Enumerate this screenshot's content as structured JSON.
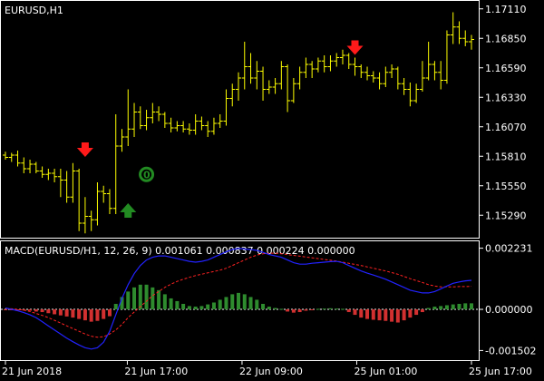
{
  "window": {
    "title": "EURUSD,H1",
    "indicator_title": "MACD(EURUSD/H1, 12, 26, 9) 0.001061 0.000837 0.000224 0.000000"
  },
  "colors": {
    "background": "#000000",
    "frame": "#ffffff",
    "price_bars": "#ffff00",
    "macd_line": "#2222ff",
    "signal_line": "#ff2222",
    "hist_positive": "#2e8b2e",
    "hist_negative": "#d23030",
    "arrow_up": "#228b22",
    "arrow_down": "#ff1a1a",
    "zero_line": "#ffffff"
  },
  "chart_data": [
    {
      "type": "ohlc",
      "title": "EURUSD,H1",
      "y_ticks": [
        "1.17110",
        "1.16850",
        "1.16590",
        "1.16330",
        "1.16070",
        "1.15810",
        "1.15550",
        "1.15290"
      ],
      "ylim": [
        1.1514,
        1.1714
      ],
      "bars": [
        [
          1.1582,
          1.1585,
          1.1578,
          1.158
        ],
        [
          1.158,
          1.1584,
          1.1576,
          1.1582
        ],
        [
          1.1582,
          1.1586,
          1.1572,
          1.1575
        ],
        [
          1.1575,
          1.158,
          1.1566,
          1.157
        ],
        [
          1.157,
          1.1578,
          1.1566,
          1.1574
        ],
        [
          1.1574,
          1.1576,
          1.1566,
          1.1568
        ],
        [
          1.1568,
          1.1572,
          1.1562,
          1.1565
        ],
        [
          1.1565,
          1.157,
          1.156,
          1.1566
        ],
        [
          1.1566,
          1.157,
          1.1558,
          1.1563
        ],
        [
          1.1563,
          1.157,
          1.1545,
          1.156
        ],
        [
          1.156,
          1.1568,
          1.154,
          1.1545
        ],
        [
          1.1545,
          1.1575,
          1.154,
          1.1568
        ],
        [
          1.1568,
          1.157,
          1.1515,
          1.1522
        ],
        [
          1.1522,
          1.1545,
          1.1513,
          1.1528
        ],
        [
          1.1528,
          1.1533,
          1.1515,
          1.1525
        ],
        [
          1.1525,
          1.1558,
          1.152,
          1.155
        ],
        [
          1.155,
          1.1555,
          1.154,
          1.1548
        ],
        [
          1.1548,
          1.1552,
          1.153,
          1.1535
        ],
        [
          1.1535,
          1.1618,
          1.153,
          1.159
        ],
        [
          1.159,
          1.1605,
          1.1585,
          1.1598
        ],
        [
          1.1598,
          1.164,
          1.159,
          1.1605
        ],
        [
          1.1605,
          1.1628,
          1.1598,
          1.162
        ],
        [
          1.162,
          1.1625,
          1.1605,
          1.1608
        ],
        [
          1.1608,
          1.1622,
          1.1604,
          1.1615
        ],
        [
          1.1615,
          1.1628,
          1.161,
          1.162
        ],
        [
          1.162,
          1.1625,
          1.1612,
          1.1618
        ],
        [
          1.1618,
          1.162,
          1.1606,
          1.161
        ],
        [
          1.161,
          1.1615,
          1.1602,
          1.1606
        ],
        [
          1.1606,
          1.1612,
          1.1603,
          1.1608
        ],
        [
          1.1608,
          1.1612,
          1.1602,
          1.1605
        ],
        [
          1.1605,
          1.161,
          1.16,
          1.1604
        ],
        [
          1.1604,
          1.1618,
          1.16,
          1.1612
        ],
        [
          1.1612,
          1.1616,
          1.1604,
          1.1608
        ],
        [
          1.1608,
          1.1612,
          1.1598,
          1.1603
        ],
        [
          1.1603,
          1.1615,
          1.16,
          1.161
        ],
        [
          1.161,
          1.1618,
          1.1606,
          1.1612
        ],
        [
          1.1612,
          1.164,
          1.1608,
          1.1632
        ],
        [
          1.1632,
          1.1645,
          1.1625,
          1.164
        ],
        [
          1.164,
          1.1655,
          1.163,
          1.165
        ],
        [
          1.165,
          1.1682,
          1.164,
          1.166
        ],
        [
          1.166,
          1.1672,
          1.1645,
          1.165
        ],
        [
          1.165,
          1.1665,
          1.164,
          1.1656
        ],
        [
          1.1656,
          1.166,
          1.163,
          1.164
        ],
        [
          1.164,
          1.1648,
          1.1636,
          1.1642
        ],
        [
          1.1642,
          1.165,
          1.1636,
          1.1645
        ],
        [
          1.1645,
          1.1665,
          1.164,
          1.166
        ],
        [
          1.166,
          1.1662,
          1.162,
          1.163
        ],
        [
          1.163,
          1.165,
          1.1628,
          1.1645
        ],
        [
          1.1645,
          1.166,
          1.164,
          1.1655
        ],
        [
          1.1655,
          1.1668,
          1.165,
          1.1662
        ],
        [
          1.1662,
          1.1665,
          1.165,
          1.1658
        ],
        [
          1.1658,
          1.1668,
          1.1655,
          1.1665
        ],
        [
          1.1665,
          1.167,
          1.1655,
          1.166
        ],
        [
          1.166,
          1.167,
          1.1656,
          1.1665
        ],
        [
          1.1665,
          1.1672,
          1.166,
          1.1668
        ],
        [
          1.1668,
          1.1675,
          1.1662,
          1.167
        ],
        [
          1.167,
          1.1672,
          1.1658,
          1.1662
        ],
        [
          1.1662,
          1.1668,
          1.1652,
          1.166
        ],
        [
          1.166,
          1.1662,
          1.165,
          1.1655
        ],
        [
          1.1655,
          1.166,
          1.1648,
          1.1652
        ],
        [
          1.1652,
          1.1656,
          1.1646,
          1.165
        ],
        [
          1.165,
          1.1655,
          1.164,
          1.1645
        ],
        [
          1.1645,
          1.166,
          1.1642,
          1.1655
        ],
        [
          1.1655,
          1.1662,
          1.165,
          1.1658
        ],
        [
          1.1658,
          1.166,
          1.164,
          1.1645
        ],
        [
          1.1645,
          1.165,
          1.1635,
          1.164
        ],
        [
          1.164,
          1.1646,
          1.1625,
          1.163
        ],
        [
          1.163,
          1.1645,
          1.1628,
          1.164
        ],
        [
          1.164,
          1.1665,
          1.1638,
          1.165
        ],
        [
          1.165,
          1.1682,
          1.1648,
          1.1662
        ],
        [
          1.1662,
          1.1665,
          1.1648,
          1.1655
        ],
        [
          1.1655,
          1.1665,
          1.164,
          1.1648
        ],
        [
          1.1648,
          1.1692,
          1.1645,
          1.1688
        ],
        [
          1.1688,
          1.1708,
          1.168,
          1.1695
        ],
        [
          1.1695,
          1.17,
          1.168,
          1.1685
        ],
        [
          1.1685,
          1.1692,
          1.1678,
          1.1682
        ],
        [
          1.1682,
          1.1688,
          1.1675,
          1.1684
        ]
      ],
      "signals": [
        {
          "type": "sell",
          "bar": 13,
          "price": 1.1582
        },
        {
          "type": "buy",
          "bar": 20,
          "price": 1.1538
        },
        {
          "type": "sell",
          "bar": 57,
          "price": 1.1672
        }
      ],
      "marker": {
        "text": "0",
        "bar": 23,
        "price": 1.1565
      }
    },
    {
      "type": "macd",
      "title": "MACD(EURUSD/H1, 12, 26, 9) 0.001061 0.000837 0.000224 0.000000",
      "y_ticks": [
        "0.002231",
        "0.000000",
        "-0.001502"
      ],
      "ylim": [
        -0.00172,
        0.00235
      ],
      "histogram": [
        -2e-05,
        -2e-05,
        -3e-05,
        -4e-05,
        -5e-05,
        -8e-05,
        -0.0001,
        -0.00014,
        -0.00018,
        -0.00022,
        -0.00026,
        -0.0003,
        -0.00035,
        -0.0004,
        -0.00045,
        -0.00042,
        -0.00035,
        -0.00025,
        0.0002,
        0.00045,
        0.00065,
        0.0008,
        0.0009,
        0.0009,
        0.0008,
        0.0007,
        0.00055,
        0.0004,
        0.0003,
        0.0002,
        0.00012,
        0.0001,
        0.00012,
        0.00018,
        0.00025,
        0.00035,
        0.00045,
        0.00055,
        0.0006,
        0.00055,
        0.00045,
        0.00035,
        0.0002,
        0.0001,
        5e-05,
        2e-05,
        -8e-05,
        -0.00012,
        -0.0001,
        -5e-05,
        -2e-05,
        2e-05,
        3e-05,
        4e-05,
        3e-05,
        2e-05,
        -0.0001,
        -0.0002,
        -0.0003,
        -0.00035,
        -0.00038,
        -0.0004,
        -0.00042,
        -0.00045,
        -0.00048,
        -0.0004,
        -0.0003,
        -0.0002,
        -0.0001,
        5e-05,
        0.0001,
        0.00012,
        0.00015,
        0.00018,
        0.0002,
        0.00022,
        0.00022
      ],
      "macd_line": [
        5e-05,
        0.0,
        -5e-05,
        -0.00012,
        -0.0002,
        -0.0003,
        -0.00045,
        -0.0006,
        -0.00075,
        -0.0009,
        -0.00105,
        -0.00118,
        -0.0013,
        -0.0014,
        -0.00145,
        -0.0014,
        -0.0012,
        -0.0008,
        -0.0002,
        0.0004,
        0.0009,
        0.0013,
        0.0016,
        0.0018,
        0.0019,
        0.00195,
        0.00195,
        0.0019,
        0.00185,
        0.0018,
        0.00175,
        0.00172,
        0.00175,
        0.0018,
        0.0019,
        0.002,
        0.0021,
        0.00218,
        0.00222,
        0.0022,
        0.00218,
        0.00215,
        0.00208,
        0.002,
        0.00195,
        0.0019,
        0.0018,
        0.0017,
        0.00165,
        0.00165,
        0.00168,
        0.0017,
        0.00172,
        0.00174,
        0.00175,
        0.0017,
        0.0016,
        0.0015,
        0.0014,
        0.00132,
        0.00125,
        0.00118,
        0.0011,
        0.001,
        0.0009,
        0.0008,
        0.0007,
        0.00065,
        0.0006,
        0.0006,
        0.00065,
        0.00075,
        0.00085,
        0.00095,
        0.001,
        0.00104,
        0.00106
      ],
      "signal_line": [
        3e-05,
        2e-05,
        0.0,
        -3e-05,
        -8e-05,
        -0.00015,
        -0.00022,
        -0.0003,
        -0.0004,
        -0.0005,
        -0.0006,
        -0.0007,
        -0.0008,
        -0.0009,
        -0.00098,
        -0.00102,
        -0.001,
        -0.0009,
        -0.00075,
        -0.00055,
        -0.0003,
        -0.0001,
        0.0001,
        0.0003,
        0.0005,
        0.00065,
        0.0008,
        0.00092,
        0.00102,
        0.0011,
        0.00117,
        0.00123,
        0.00128,
        0.00133,
        0.00138,
        0.00143,
        0.0015,
        0.0016,
        0.0017,
        0.0018,
        0.0019,
        0.00198,
        0.00203,
        0.00205,
        0.00205,
        0.00203,
        0.002,
        0.00197,
        0.00194,
        0.00191,
        0.00188,
        0.00185,
        0.00182,
        0.00179,
        0.00176,
        0.00172,
        0.00168,
        0.00164,
        0.0016,
        0.00155,
        0.0015,
        0.00145,
        0.0014,
        0.00134,
        0.00128,
        0.0012,
        0.00112,
        0.00105,
        0.00098,
        0.0009,
        0.00085,
        0.00082,
        0.00082,
        0.00082,
        0.00083,
        0.00083,
        0.00084
      ],
      "zero_level": 0.0
    }
  ],
  "time_axis": {
    "labels": [
      {
        "text": "21 Jun 2018",
        "bar": 0
      },
      {
        "text": "21 Jun 17:00",
        "bar": 17
      },
      {
        "text": "22 Jun 09:00",
        "bar": 33
      },
      {
        "text": "25 Jun 01:00",
        "bar": 49
      },
      {
        "text": "25 Jun 17:00",
        "bar": 65
      }
    ]
  }
}
